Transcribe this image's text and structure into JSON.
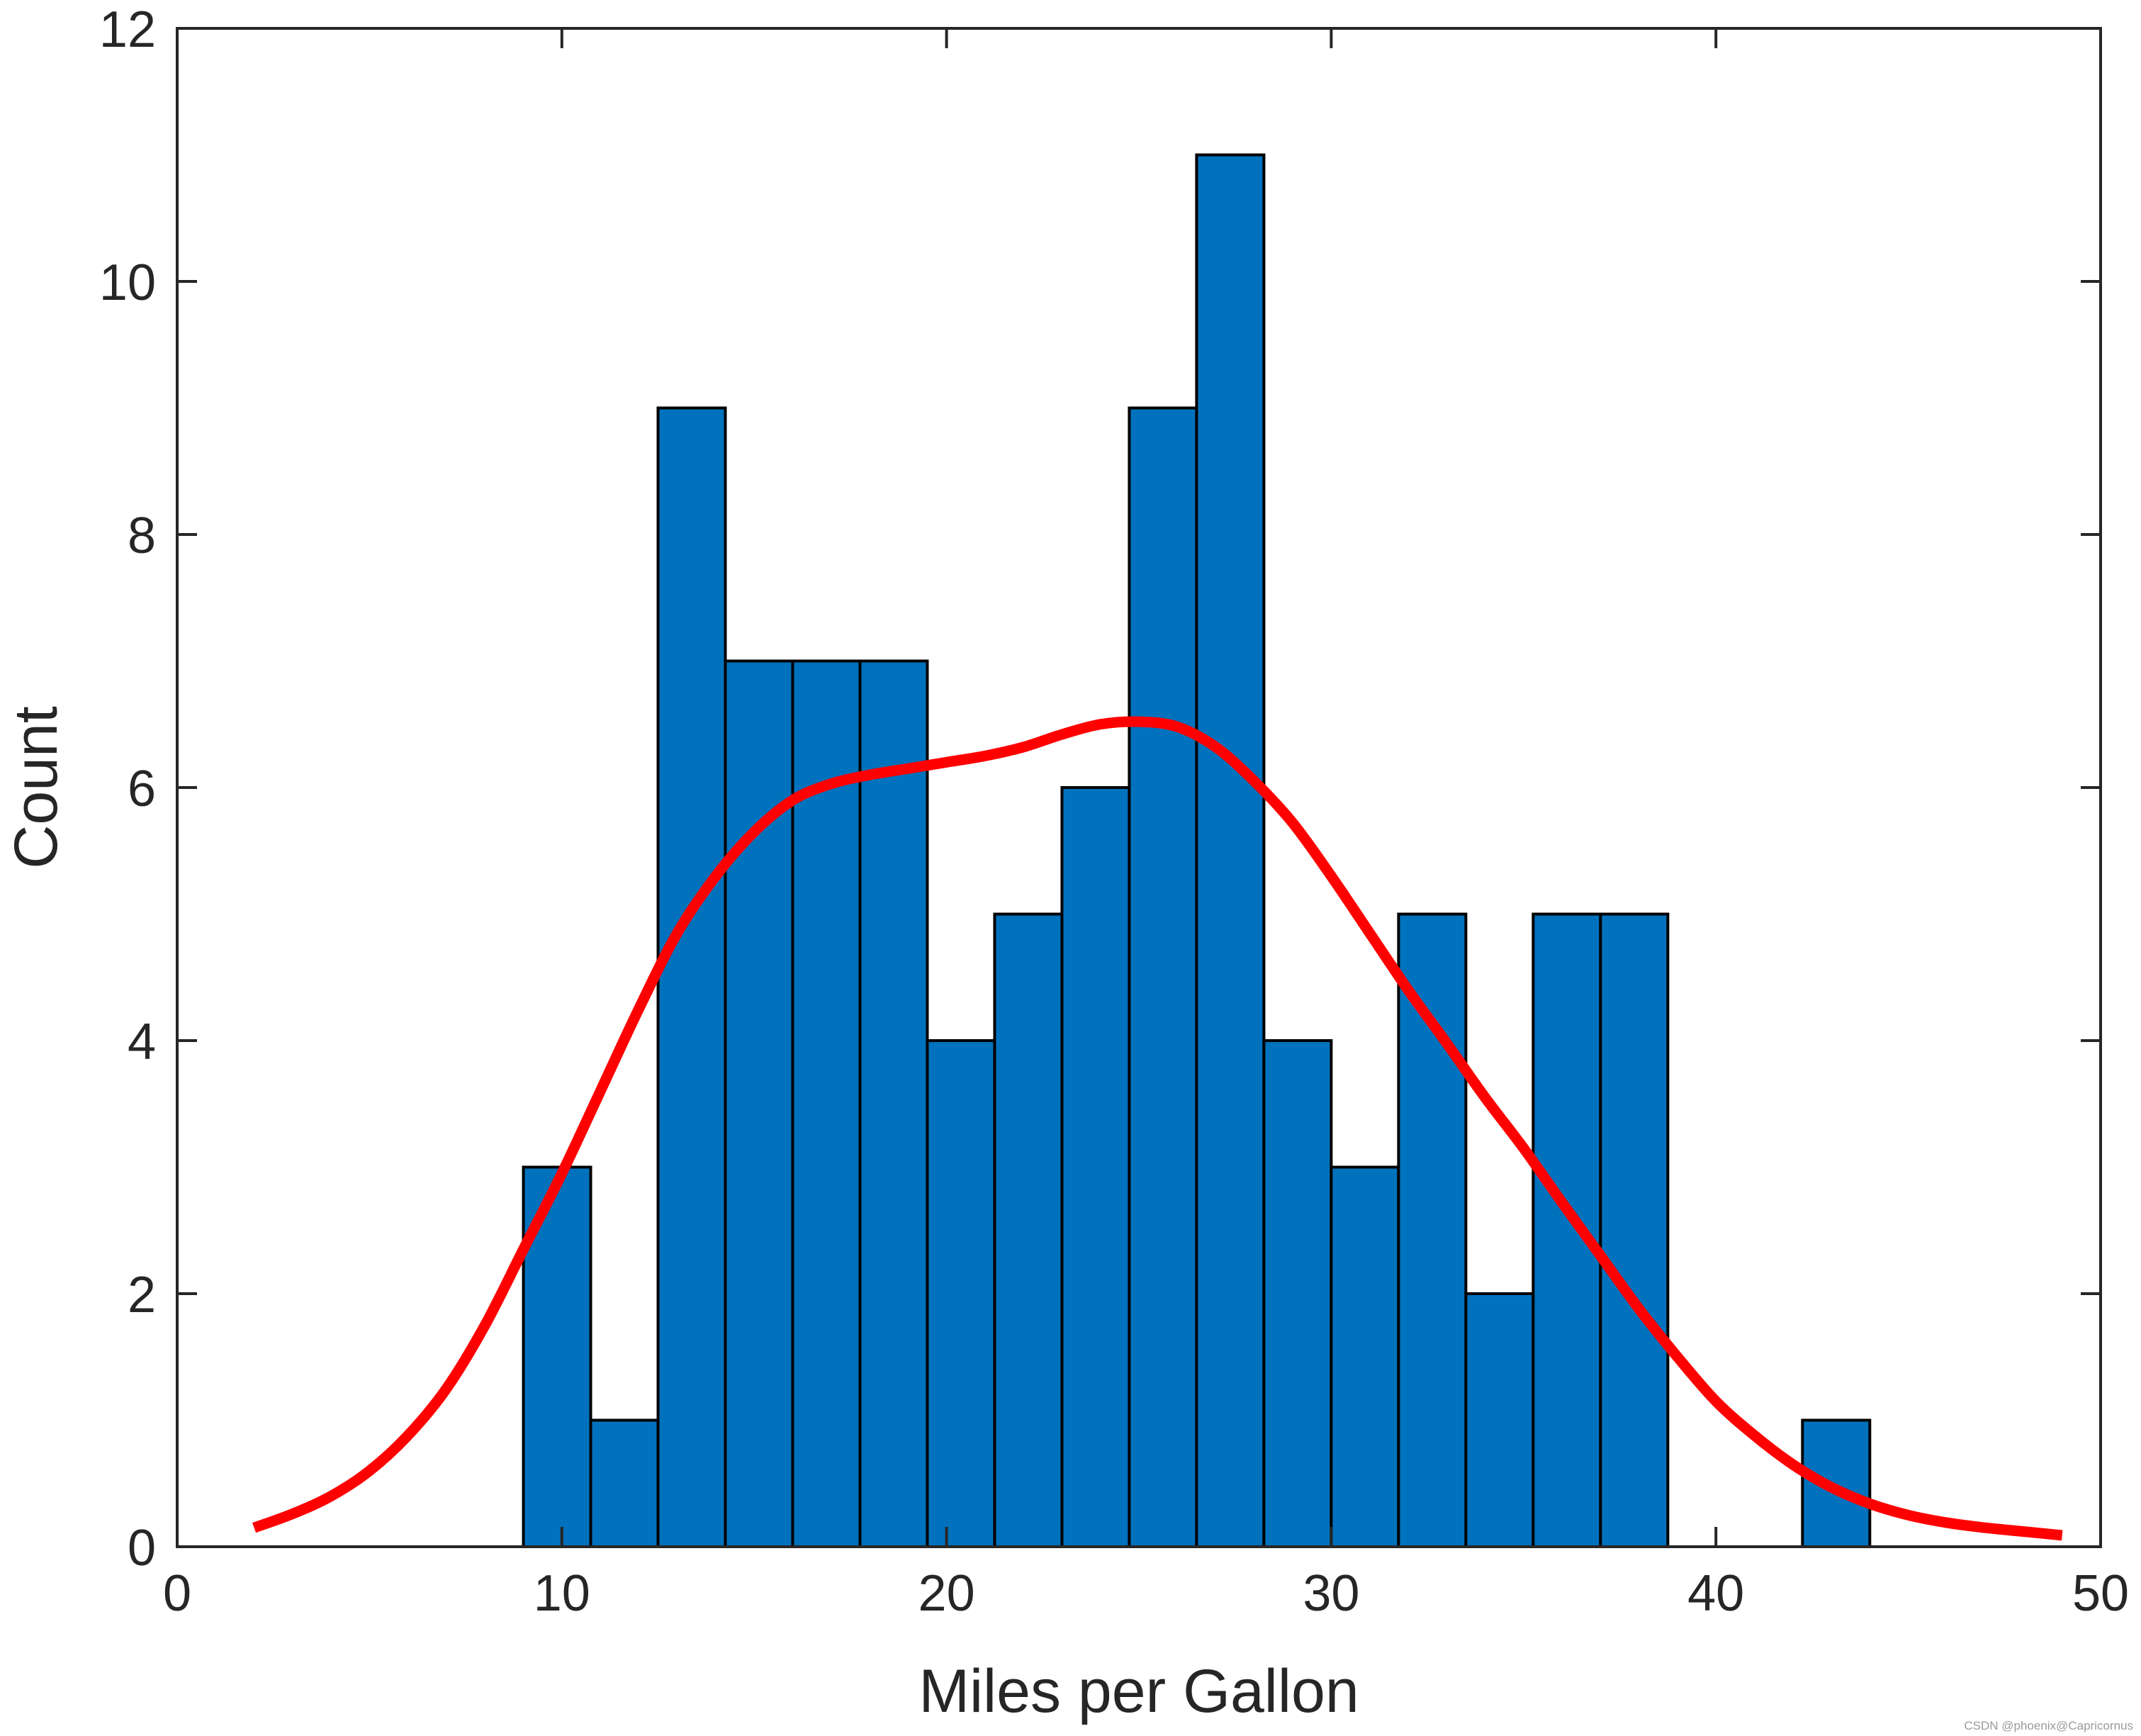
{
  "chart_data": {
    "type": "bar",
    "subtype": "histogram",
    "title": "",
    "xlabel": "Miles per Gallon",
    "ylabel": "Count",
    "xlim": [
      0,
      50
    ],
    "ylim": [
      0,
      12
    ],
    "xticks": [
      0,
      10,
      20,
      30,
      40,
      50
    ],
    "yticks": [
      0,
      2,
      4,
      6,
      8,
      10,
      12
    ],
    "grid": false,
    "bins": [
      {
        "x0": 9.0,
        "x1": 10.75,
        "count": 3
      },
      {
        "x0": 10.75,
        "x1": 12.5,
        "count": 1
      },
      {
        "x0": 12.5,
        "x1": 14.25,
        "count": 9
      },
      {
        "x0": 14.25,
        "x1": 16.0,
        "count": 7
      },
      {
        "x0": 16.0,
        "x1": 17.75,
        "count": 7
      },
      {
        "x0": 17.75,
        "x1": 19.5,
        "count": 7
      },
      {
        "x0": 19.5,
        "x1": 21.25,
        "count": 4
      },
      {
        "x0": 21.25,
        "x1": 23.0,
        "count": 5
      },
      {
        "x0": 23.0,
        "x1": 24.75,
        "count": 6
      },
      {
        "x0": 24.75,
        "x1": 26.5,
        "count": 9
      },
      {
        "x0": 26.5,
        "x1": 28.25,
        "count": 11
      },
      {
        "x0": 28.25,
        "x1": 30.0,
        "count": 4
      },
      {
        "x0": 30.0,
        "x1": 31.75,
        "count": 3
      },
      {
        "x0": 31.75,
        "x1": 33.5,
        "count": 5
      },
      {
        "x0": 33.5,
        "x1": 35.25,
        "count": 2
      },
      {
        "x0": 35.25,
        "x1": 37.0,
        "count": 5
      },
      {
        "x0": 37.0,
        "x1": 38.75,
        "count": 5
      },
      {
        "x0": 38.75,
        "x1": 40.5,
        "count": 0
      },
      {
        "x0": 40.5,
        "x1": 42.25,
        "count": 0
      },
      {
        "x0": 42.25,
        "x1": 44.0,
        "count": 1
      }
    ],
    "bar_color": "#0072bd",
    "bar_edge_color": "#000000",
    "curve": {
      "type": "line",
      "color": "#ff0000",
      "points": [
        [
          2,
          0.15
        ],
        [
          3,
          0.26
        ],
        [
          4,
          0.4
        ],
        [
          5,
          0.6
        ],
        [
          6,
          0.88
        ],
        [
          7,
          1.25
        ],
        [
          8,
          1.75
        ],
        [
          9,
          2.35
        ],
        [
          10,
          2.95
        ],
        [
          11,
          3.6
        ],
        [
          12,
          4.25
        ],
        [
          13,
          4.85
        ],
        [
          14,
          5.3
        ],
        [
          15,
          5.65
        ],
        [
          16,
          5.9
        ],
        [
          17,
          6.03
        ],
        [
          18,
          6.1
        ],
        [
          19,
          6.15
        ],
        [
          20,
          6.2
        ],
        [
          21,
          6.25
        ],
        [
          22,
          6.32
        ],
        [
          23,
          6.42
        ],
        [
          24,
          6.5
        ],
        [
          25,
          6.52
        ],
        [
          26,
          6.48
        ],
        [
          27,
          6.32
        ],
        [
          28,
          6.05
        ],
        [
          29,
          5.72
        ],
        [
          30,
          5.3
        ],
        [
          31,
          4.85
        ],
        [
          32,
          4.4
        ],
        [
          33,
          3.98
        ],
        [
          34,
          3.55
        ],
        [
          35,
          3.15
        ],
        [
          36,
          2.72
        ],
        [
          37,
          2.3
        ],
        [
          38,
          1.88
        ],
        [
          39,
          1.5
        ],
        [
          40,
          1.15
        ],
        [
          41,
          0.88
        ],
        [
          42,
          0.65
        ],
        [
          43,
          0.47
        ],
        [
          44,
          0.34
        ],
        [
          45,
          0.25
        ],
        [
          46,
          0.19
        ],
        [
          47,
          0.15
        ],
        [
          48,
          0.12
        ],
        [
          49,
          0.09
        ]
      ]
    },
    "axis_color": "#262626"
  },
  "watermark": "CSDN @phoenix@Capricornus"
}
